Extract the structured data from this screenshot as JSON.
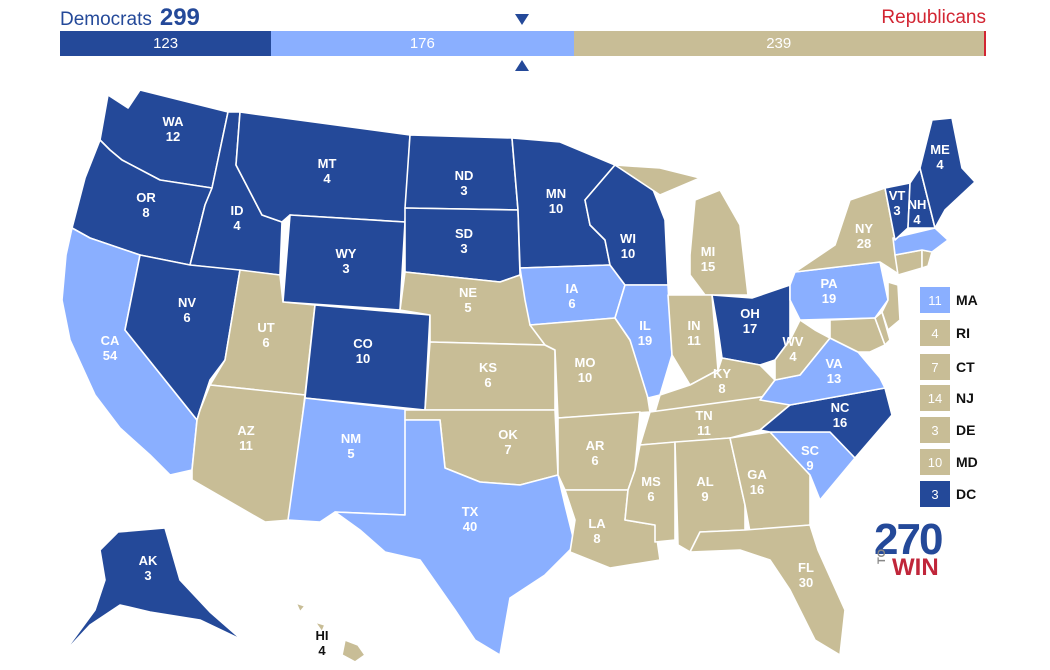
{
  "header": {
    "dem_label": "Democrats",
    "dem_total": "299",
    "rep_label": "Republicans"
  },
  "bar": {
    "segments": [
      {
        "name": "safe-dem",
        "value": 123,
        "label": "123",
        "color": "#244999"
      },
      {
        "name": "lean-dem",
        "value": 176,
        "label": "176",
        "color": "#8aafff"
      },
      {
        "name": "tossup",
        "value": 239,
        "label": "239",
        "color": "#c8bd96"
      }
    ],
    "total": 538
  },
  "colors": {
    "safe_dem": "#244999",
    "lean_dem": "#8aafff",
    "tossup": "#c8bd96",
    "republican": "#d22532"
  },
  "states": {
    "WA": {
      "name": "WA",
      "ev": "12"
    },
    "OR": {
      "name": "OR",
      "ev": "8"
    },
    "CA": {
      "name": "CA",
      "ev": "54"
    },
    "ID": {
      "name": "ID",
      "ev": "4"
    },
    "NV": {
      "name": "NV",
      "ev": "6"
    },
    "MT": {
      "name": "MT",
      "ev": "4"
    },
    "WY": {
      "name": "WY",
      "ev": "3"
    },
    "UT": {
      "name": "UT",
      "ev": "6"
    },
    "AZ": {
      "name": "AZ",
      "ev": "11"
    },
    "CO": {
      "name": "CO",
      "ev": "10"
    },
    "NM": {
      "name": "NM",
      "ev": "5"
    },
    "ND": {
      "name": "ND",
      "ev": "3"
    },
    "SD": {
      "name": "SD",
      "ev": "3"
    },
    "NE": {
      "name": "NE",
      "ev": "5"
    },
    "KS": {
      "name": "KS",
      "ev": "6"
    },
    "OK": {
      "name": "OK",
      "ev": "7"
    },
    "TX": {
      "name": "TX",
      "ev": "40"
    },
    "MN": {
      "name": "MN",
      "ev": "10"
    },
    "IA": {
      "name": "IA",
      "ev": "6"
    },
    "MO": {
      "name": "MO",
      "ev": "10"
    },
    "AR": {
      "name": "AR",
      "ev": "6"
    },
    "LA": {
      "name": "LA",
      "ev": "8"
    },
    "WI": {
      "name": "WI",
      "ev": "10"
    },
    "IL": {
      "name": "IL",
      "ev": "19"
    },
    "MI": {
      "name": "MI",
      "ev": "15"
    },
    "IN": {
      "name": "IN",
      "ev": "11"
    },
    "OH": {
      "name": "OH",
      "ev": "17"
    },
    "KY": {
      "name": "KY",
      "ev": "8"
    },
    "TN": {
      "name": "TN",
      "ev": "11"
    },
    "MS": {
      "name": "MS",
      "ev": "6"
    },
    "AL": {
      "name": "AL",
      "ev": "9"
    },
    "GA": {
      "name": "GA",
      "ev": "16"
    },
    "FL": {
      "name": "FL",
      "ev": "30"
    },
    "SC": {
      "name": "SC",
      "ev": "9"
    },
    "NC": {
      "name": "NC",
      "ev": "16"
    },
    "VA": {
      "name": "VA",
      "ev": "13"
    },
    "WV": {
      "name": "WV",
      "ev": "4"
    },
    "PA": {
      "name": "PA",
      "ev": "19"
    },
    "NY": {
      "name": "NY",
      "ev": "28"
    },
    "VT": {
      "name": "VT",
      "ev": "3"
    },
    "NH": {
      "name": "NH",
      "ev": "4"
    },
    "ME": {
      "name": "ME",
      "ev": "4"
    },
    "AK": {
      "name": "AK",
      "ev": "3"
    },
    "HI": {
      "name": "HI",
      "ev": "4"
    }
  },
  "legend": [
    {
      "abbr": "MA",
      "ev": "11",
      "color": "#8aafff"
    },
    {
      "abbr": "RI",
      "ev": "4",
      "color": "#c8bd96"
    },
    {
      "abbr": "CT",
      "ev": "7",
      "color": "#c8bd96"
    },
    {
      "abbr": "NJ",
      "ev": "14",
      "color": "#c8bd96"
    },
    {
      "abbr": "DE",
      "ev": "3",
      "color": "#c8bd96"
    },
    {
      "abbr": "MD",
      "ev": "10",
      "color": "#c8bd96"
    },
    {
      "abbr": "DC",
      "ev": "3",
      "color": "#244999"
    }
  ],
  "logo": {
    "number": "270",
    "small": "TO",
    "word": "WIN"
  }
}
